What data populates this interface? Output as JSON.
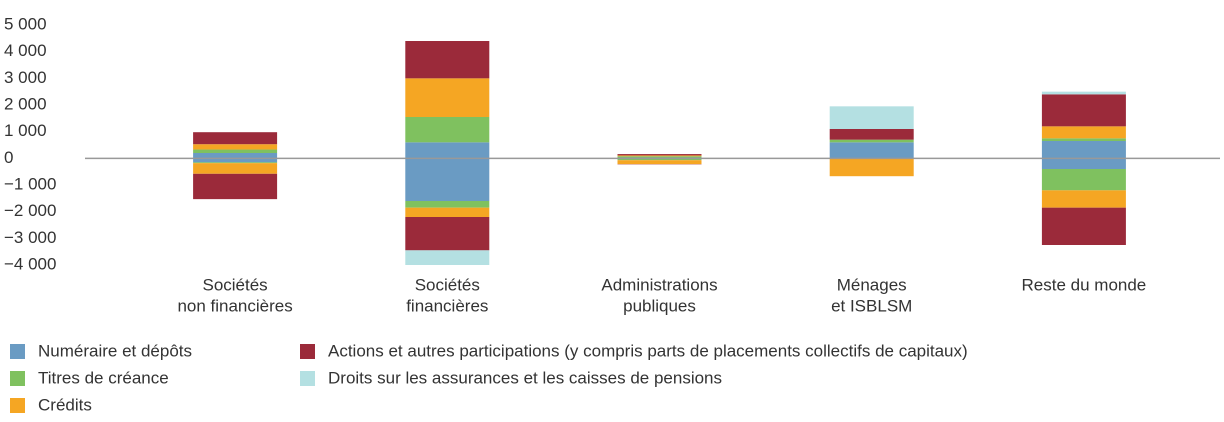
{
  "chart_data": {
    "type": "bar",
    "stacked": true,
    "categories": [
      [
        "Sociétés",
        "non financières"
      ],
      [
        "Sociétés",
        "financières"
      ],
      [
        "Administrations",
        "publiques"
      ],
      [
        "Ménages",
        "et ISBLSM"
      ],
      [
        "Reste du monde"
      ]
    ],
    "series": [
      {
        "name": "Numéraire et dépôts",
        "color": "#6a9bc3",
        "values": [
          [
            200,
            -150
          ],
          [
            600,
            -1600
          ],
          [
            30,
            -20
          ],
          [
            600,
            -20
          ],
          [
            650,
            -400
          ]
        ]
      },
      {
        "name": "Titres de créance",
        "color": "#7fc15f",
        "values": [
          [
            130,
            -30
          ],
          [
            950,
            -250
          ],
          [
            50,
            -50
          ],
          [
            100,
            0
          ],
          [
            100,
            -800
          ]
        ]
      },
      {
        "name": "Crédits",
        "color": "#f5a623",
        "values": [
          [
            200,
            -400
          ],
          [
            1450,
            -350
          ],
          [
            30,
            -150
          ],
          [
            0,
            -650
          ],
          [
            450,
            -650
          ]
        ]
      },
      {
        "name": "Actions et autres participations (y compris parts de placements collectifs de capitaux)",
        "color": "#9b2a3a",
        "values": [
          [
            450,
            -950
          ],
          [
            1400,
            -1250
          ],
          [
            50,
            -10
          ],
          [
            400,
            0
          ],
          [
            1200,
            -1400
          ]
        ]
      },
      {
        "name": "Droits sur les assurances et les caisses de pensions",
        "color": "#b4e0e2",
        "values": [
          [
            0,
            0
          ],
          [
            0,
            -550
          ],
          [
            0,
            0
          ],
          [
            850,
            0
          ],
          [
            100,
            0
          ]
        ]
      }
    ],
    "ylim": [
      -4000,
      5000
    ],
    "yticks": [
      {
        "value": 5000,
        "label": "5 000"
      },
      {
        "value": 4000,
        "label": "4 000"
      },
      {
        "value": 3000,
        "label": "3 000"
      },
      {
        "value": 2000,
        "label": "2 000"
      },
      {
        "value": 1000,
        "label": "1 000"
      },
      0,
      {
        "value": -1000,
        "label": "−1 000"
      },
      {
        "value": -2000,
        "label": "−2 000"
      },
      {
        "value": -3000,
        "label": "−3 000"
      },
      {
        "value": -4000,
        "label": "−4 000"
      }
    ],
    "grid": false,
    "legend": "bottom"
  }
}
